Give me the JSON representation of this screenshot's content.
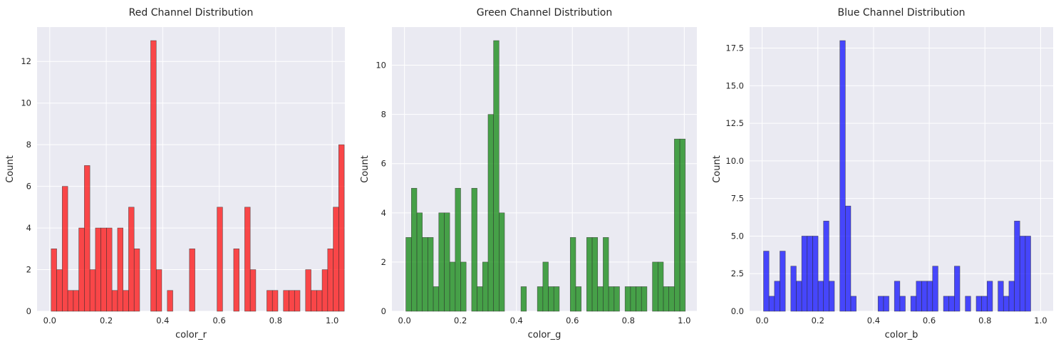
{
  "chart_data": [
    {
      "type": "bar",
      "title": "Red Channel Distribution",
      "xlabel": "color_r",
      "ylabel": "Count",
      "color": "#ff0000",
      "xlim": [
        -0.045,
        1.045
      ],
      "ylim": [
        0,
        13.65
      ],
      "xticks": [
        0,
        0.2,
        0.4,
        0.6,
        0.8,
        1
      ],
      "xtick_labels": [
        "0.0",
        "0.2",
        "0.4",
        "0.6",
        "0.8",
        "1.0"
      ],
      "yticks": [
        0,
        2,
        4,
        6,
        8,
        10,
        12
      ],
      "ytick_labels": [
        "0",
        "2",
        "4",
        "6",
        "8",
        "10",
        "12"
      ],
      "bin_start": 0.005,
      "bin_width": 0.01958,
      "counts": [
        3,
        2,
        6,
        1,
        1,
        4,
        7,
        2,
        4,
        4,
        4,
        1,
        4,
        1,
        5,
        3,
        0,
        0,
        13,
        2,
        0,
        1,
        0,
        0,
        0,
        3,
        0,
        0,
        0,
        0,
        5,
        0,
        0,
        3,
        0,
        5,
        2,
        0,
        0,
        1,
        1,
        0,
        1,
        1,
        1,
        0,
        2,
        1,
        1,
        2,
        3,
        5,
        8
      ]
    },
    {
      "type": "bar",
      "title": "Green Channel Distribution",
      "xlabel": "color_g",
      "ylabel": "Count",
      "color": "#008000",
      "xlim": [
        -0.045,
        1.045
      ],
      "ylim": [
        0,
        11.55
      ],
      "xticks": [
        0,
        0.2,
        0.4,
        0.6,
        0.8,
        1
      ],
      "xtick_labels": [
        "0.0",
        "0.2",
        "0.4",
        "0.6",
        "0.8",
        "1.0"
      ],
      "yticks": [
        0,
        2,
        4,
        6,
        8,
        10
      ],
      "ytick_labels": [
        "0",
        "2",
        "4",
        "6",
        "8",
        "10"
      ],
      "bin_start": 0.005,
      "bin_width": 0.01958,
      "counts": [
        3,
        5,
        4,
        3,
        3,
        1,
        4,
        4,
        2,
        5,
        2,
        0,
        5,
        1,
        2,
        8,
        11,
        4,
        0,
        0,
        0,
        1,
        0,
        0,
        1,
        2,
        1,
        1,
        0,
        0,
        3,
        1,
        0,
        3,
        3,
        1,
        3,
        1,
        1,
        0,
        1,
        1,
        1,
        1,
        0,
        2,
        2,
        1,
        1,
        7,
        7
      ]
    },
    {
      "type": "bar",
      "title": "Blue Channel Distribution",
      "xlabel": "color_b",
      "ylabel": "Count",
      "color": "#0000ff",
      "xlim": [
        -0.045,
        1.045
      ],
      "ylim": [
        0,
        18.9
      ],
      "xticks": [
        0,
        0.2,
        0.4,
        0.6,
        0.8,
        1
      ],
      "xtick_labels": [
        "0.0",
        "0.2",
        "0.4",
        "0.6",
        "0.8",
        "1.0"
      ],
      "yticks": [
        0,
        2.5,
        5,
        7.5,
        10,
        12.5,
        15,
        17.5
      ],
      "ytick_labels": [
        "0.0",
        "2.5",
        "5.0",
        "7.5",
        "10.0",
        "12.5",
        "15.0",
        "17.5"
      ],
      "bin_start": 0.005,
      "bin_width": 0.01958,
      "counts": [
        4,
        1,
        2,
        4,
        0,
        3,
        2,
        5,
        5,
        5,
        2,
        6,
        2,
        0,
        18,
        7,
        1,
        0,
        0,
        0,
        0,
        1,
        1,
        0,
        2,
        1,
        0,
        1,
        2,
        2,
        2,
        3,
        0,
        1,
        1,
        3,
        0,
        1,
        0,
        1,
        1,
        2,
        0,
        2,
        1,
        2,
        6,
        5,
        5
      ]
    }
  ]
}
